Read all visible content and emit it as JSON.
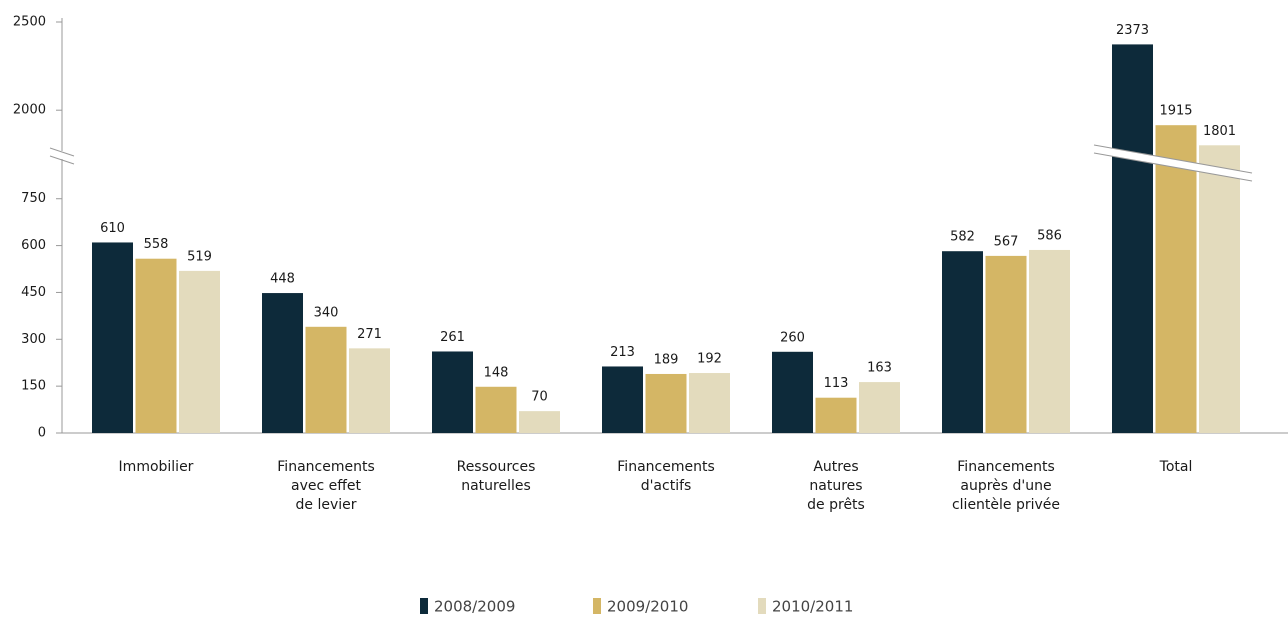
{
  "chart_data": {
    "type": "bar",
    "categories": [
      "Immobilier",
      "Financements\navec effet\nde levier",
      "Ressources\nnaturelles",
      "Financements\nd'actifs",
      "Autres\nnatures\nde prêts",
      "Financements\nauprès d'une\nclientèle privée",
      "Total"
    ],
    "series": [
      {
        "name": "2008/2009",
        "color": "#0d2a3a",
        "values": [
          610,
          448,
          261,
          213,
          260,
          582,
          2373
        ]
      },
      {
        "name": "2009/2010",
        "color": "#d4b665",
        "values": [
          558,
          340,
          148,
          189,
          113,
          567,
          1915
        ]
      },
      {
        "name": "2010/2011",
        "color": "#e3dbbd",
        "values": [
          519,
          271,
          70,
          192,
          163,
          586,
          1801
        ]
      }
    ],
    "ylim": [
      0,
      2500
    ],
    "axis_break": [
      890,
      1780
    ],
    "yticks": [
      0,
      150,
      300,
      450,
      600,
      750,
      2000,
      2500
    ],
    "legend": "bottom"
  }
}
